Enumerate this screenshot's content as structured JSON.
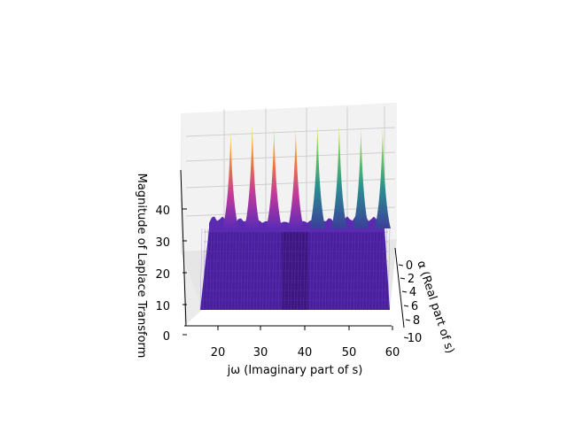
{
  "chart_data": {
    "type": "surface3d",
    "xlabel": "jω (Imaginary part of s)",
    "ylabel": "α (Real part of s)",
    "zlabel": "Magnitude of Laplace Transform",
    "x_ticks": [
      "20",
      "30",
      "40",
      "50",
      "60"
    ],
    "y_ticks": [
      "0",
      "2",
      "4",
      "6",
      "8",
      "10"
    ],
    "z_ticks": [
      "0",
      "10",
      "20",
      "30",
      "40"
    ],
    "xlim": [
      13,
      61
    ],
    "ylim": [
      0,
      10
    ],
    "zlim": [
      0,
      50
    ],
    "colormap": "plasma/viridis style (purple to yellow)",
    "grid": true,
    "peaks": [
      {
        "x": 18,
        "z": 48
      },
      {
        "x": 23.5,
        "z": 50
      },
      {
        "x": 29,
        "z": 49
      },
      {
        "x": 34.5,
        "z": 49
      },
      {
        "x": 40,
        "z": 50
      },
      {
        "x": 45.5,
        "z": 50
      },
      {
        "x": 51,
        "z": 49
      },
      {
        "x": 56.5,
        "z": 49
      }
    ]
  }
}
